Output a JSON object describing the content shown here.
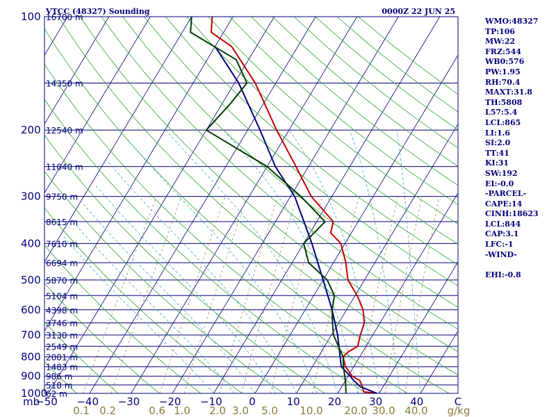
{
  "chart_data": {
    "type": "line",
    "title": "VTCC (48327) Sounding",
    "time_label": "0000Z 22 JUN 25",
    "pressure_unit_label": "mb",
    "mixing_ratio_unit_label": "g/kg",
    "ylim": [
      1000,
      100
    ],
    "xlim": [
      -50,
      50
    ],
    "y_scale": "log",
    "pressure_ticks": [
      100,
      200,
      300,
      400,
      500,
      600,
      700,
      800,
      900,
      1000
    ],
    "temperature_ticks": [
      "−50",
      "−40",
      "−30",
      "−20",
      "−10",
      "0",
      "10",
      "20",
      "30",
      "40",
      "C"
    ],
    "mixing_ratio_ticks": [
      "0.1",
      "0.2",
      "0.6",
      "1.0",
      "2.0",
      "3.0",
      "5.0",
      "10.0",
      "20.0",
      "30.0",
      "40.0"
    ],
    "height_labels": [
      {
        "p": 100,
        "label": "16700 m"
      },
      {
        "p": 150,
        "label": "14350 m"
      },
      {
        "p": 200,
        "label": "12540 m"
      },
      {
        "p": 250,
        "label": "11040 m"
      },
      {
        "p": 300,
        "label": "9750 m"
      },
      {
        "p": 350,
        "label": "8615 m"
      },
      {
        "p": 400,
        "label": "7610 m"
      },
      {
        "p": 450,
        "label": "6694 m"
      },
      {
        "p": 500,
        "label": "5870 m"
      },
      {
        "p": 550,
        "label": "5104 m"
      },
      {
        "p": 600,
        "label": "4398 m"
      },
      {
        "p": 650,
        "label": "3746 m"
      },
      {
        "p": 700,
        "label": "3130 m"
      },
      {
        "p": 750,
        "label": "2549 m"
      },
      {
        "p": 800,
        "label": "2001 m"
      },
      {
        "p": 850,
        "label": "1483 m"
      },
      {
        "p": 900,
        "label": "986 m"
      },
      {
        "p": 950,
        "label": "518 m"
      },
      {
        "p": 1000,
        "label": "62 m"
      }
    ],
    "series": [
      {
        "color": "#c00000",
        "points": [
          [
            1000,
            29.5
          ],
          [
            990,
            26
          ],
          [
            960,
            25
          ],
          [
            925,
            23.5
          ],
          [
            900,
            21
          ],
          [
            850,
            18
          ],
          [
            800,
            16
          ],
          [
            775,
            16.5
          ],
          [
            750,
            18
          ],
          [
            700,
            17
          ],
          [
            650,
            16.2
          ],
          [
            600,
            14
          ],
          [
            550,
            10.5
          ],
          [
            500,
            6
          ],
          [
            450,
            3
          ],
          [
            400,
            -1
          ],
          [
            375,
            -5
          ],
          [
            350,
            -6
          ],
          [
            300,
            -15
          ],
          [
            250,
            -23
          ],
          [
            200,
            -33
          ],
          [
            150,
            -45
          ],
          [
            120,
            -56
          ],
          [
            110,
            -63
          ],
          [
            100,
            -65
          ]
        ]
      },
      {
        "color": "#00007a",
        "points": [
          [
            1000,
            29.5
          ],
          [
            960,
            24.5
          ],
          [
            925,
            22
          ],
          [
            900,
            20.5
          ],
          [
            850,
            17
          ],
          [
            700,
            11.5
          ],
          [
            600,
            6.5
          ],
          [
            500,
            0
          ],
          [
            400,
            -8
          ],
          [
            300,
            -19
          ],
          [
            250,
            -28
          ],
          [
            200,
            -37
          ],
          [
            150,
            -49
          ],
          [
            120,
            -60
          ]
        ]
      },
      {
        "color": "#003b00",
        "points": [
          [
            1000,
            22
          ],
          [
            925,
            20
          ],
          [
            850,
            17.5
          ],
          [
            800,
            16
          ],
          [
            700,
            10.5
          ],
          [
            650,
            8.5
          ],
          [
            600,
            6.5
          ],
          [
            550,
            5
          ],
          [
            500,
            1
          ],
          [
            450,
            -6
          ],
          [
            400,
            -10
          ],
          [
            350,
            -8
          ],
          [
            300,
            -17.5
          ],
          [
            250,
            -30
          ],
          [
            200,
            -50
          ],
          [
            170,
            -48
          ],
          [
            150,
            -47
          ],
          [
            130,
            -53
          ],
          [
            110,
            -68
          ],
          [
            100,
            -70
          ]
        ]
      }
    ]
  },
  "indices": [
    "WMO:48327",
    "TP:106",
    "MW:22",
    "FRZ:544",
    "WB0:576",
    "PW:1.95",
    "RH:70.4",
    "MAXT:31.8",
    "TH:5808",
    "L57:5.4",
    "LCL:865",
    "LI:1.6",
    "SI:2.0",
    "TT:41",
    "KI:31",
    "SW:192",
    "EI:-0.0",
    "-PARCEL-",
    "CAPE:14",
    "CINH:18623",
    "LCL:844",
    "CAP:3.1",
    "LFC:-1",
    "-WIND-",
    "",
    "EHI:-0.8"
  ]
}
